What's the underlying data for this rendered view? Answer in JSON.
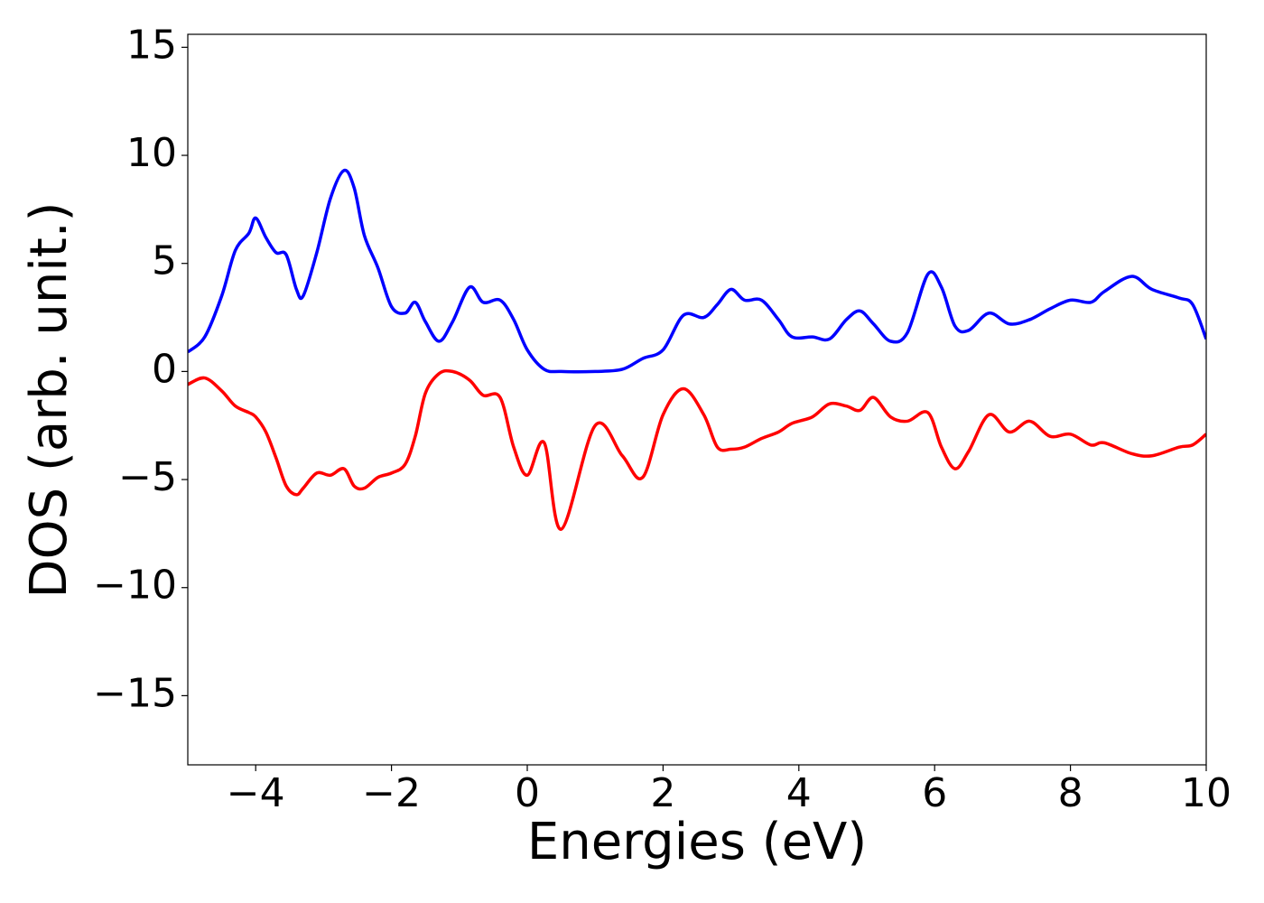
{
  "chart_data": {
    "type": "line",
    "xlabel": "Energies (eV)",
    "ylabel": "DOS (arb. unit.)",
    "x": [
      -5,
      -4.75,
      -4.5,
      -4.3,
      -4.1,
      -4.0,
      -3.85,
      -3.7,
      -3.55,
      -3.4,
      -3.3,
      -3.1,
      -2.9,
      -2.7,
      -2.55,
      -2.4,
      -2.2,
      -2.0,
      -1.8,
      -1.65,
      -1.5,
      -1.3,
      -1.1,
      -0.85,
      -0.65,
      -0.4,
      -0.2,
      0,
      0.25,
      0.5,
      1.0,
      1.4,
      1.7,
      2.0,
      2.3,
      2.6,
      2.8,
      3.0,
      3.2,
      3.45,
      3.7,
      3.9,
      4.2,
      4.45,
      4.7,
      4.9,
      5.1,
      5.35,
      5.6,
      5.9,
      6.1,
      6.3,
      6.5,
      6.8,
      7.1,
      7.4,
      7.7,
      8.0,
      8.3,
      8.5,
      8.9,
      9.2,
      9.6,
      9.8,
      10
    ],
    "series": [
      {
        "color": "#0000ff",
        "values": [
          0.9,
          1.6,
          3.5,
          5.6,
          6.4,
          7.1,
          6.2,
          5.5,
          5.4,
          3.8,
          3.5,
          5.5,
          8.0,
          9.3,
          8.5,
          6.3,
          4.8,
          3.0,
          2.7,
          3.2,
          2.3,
          1.4,
          2.3,
          3.9,
          3.2,
          3.3,
          2.4,
          1.0,
          0.1,
          0,
          0,
          0.1,
          0.6,
          1.0,
          2.6,
          2.5,
          3.1,
          3.8,
          3.3,
          3.3,
          2.4,
          1.6,
          1.6,
          1.5,
          2.4,
          2.8,
          2.2,
          1.4,
          1.8,
          4.5,
          3.9,
          2.1,
          1.9,
          2.7,
          2.2,
          2.4,
          2.9,
          3.3,
          3.2,
          3.7,
          4.4,
          3.8,
          3.4,
          3.1,
          1.5
        ]
      },
      {
        "color": "#ff0000",
        "values": [
          -0.6,
          -0.3,
          -0.9,
          -1.6,
          -1.9,
          -2.1,
          -2.8,
          -4.0,
          -5.3,
          -5.7,
          -5.4,
          -4.7,
          -4.8,
          -4.5,
          -5.3,
          -5.4,
          -4.9,
          -4.7,
          -4.3,
          -3.0,
          -1.0,
          -0.1,
          0,
          -0.4,
          -1.1,
          -1.2,
          -3.5,
          -4.8,
          -3.3,
          -7.3,
          -2.5,
          -3.9,
          -4.9,
          -2.0,
          -0.8,
          -2.0,
          -3.5,
          -3.6,
          -3.5,
          -3.1,
          -2.8,
          -2.4,
          -2.1,
          -1.5,
          -1.6,
          -1.8,
          -1.2,
          -2.1,
          -2.3,
          -1.9,
          -3.5,
          -4.5,
          -3.7,
          -2.0,
          -2.8,
          -2.3,
          -3.0,
          -2.9,
          -3.4,
          -3.3,
          -3.8,
          -3.9,
          -3.5,
          -3.4,
          -2.9
        ]
      }
    ],
    "xlim": [
      -5,
      10
    ],
    "xticks": [
      {
        "value": -4,
        "label": "−4"
      },
      {
        "value": -2,
        "label": "−2"
      },
      0,
      2,
      4,
      6,
      8,
      10
    ],
    "ylim": [
      -18.2,
      15.6
    ],
    "yticks": [
      {
        "value": -15,
        "label": "−15"
      },
      {
        "value": -10,
        "label": "−10"
      },
      {
        "value": -5,
        "label": "−5"
      },
      0,
      5,
      10,
      15
    ],
    "grid": false
  }
}
